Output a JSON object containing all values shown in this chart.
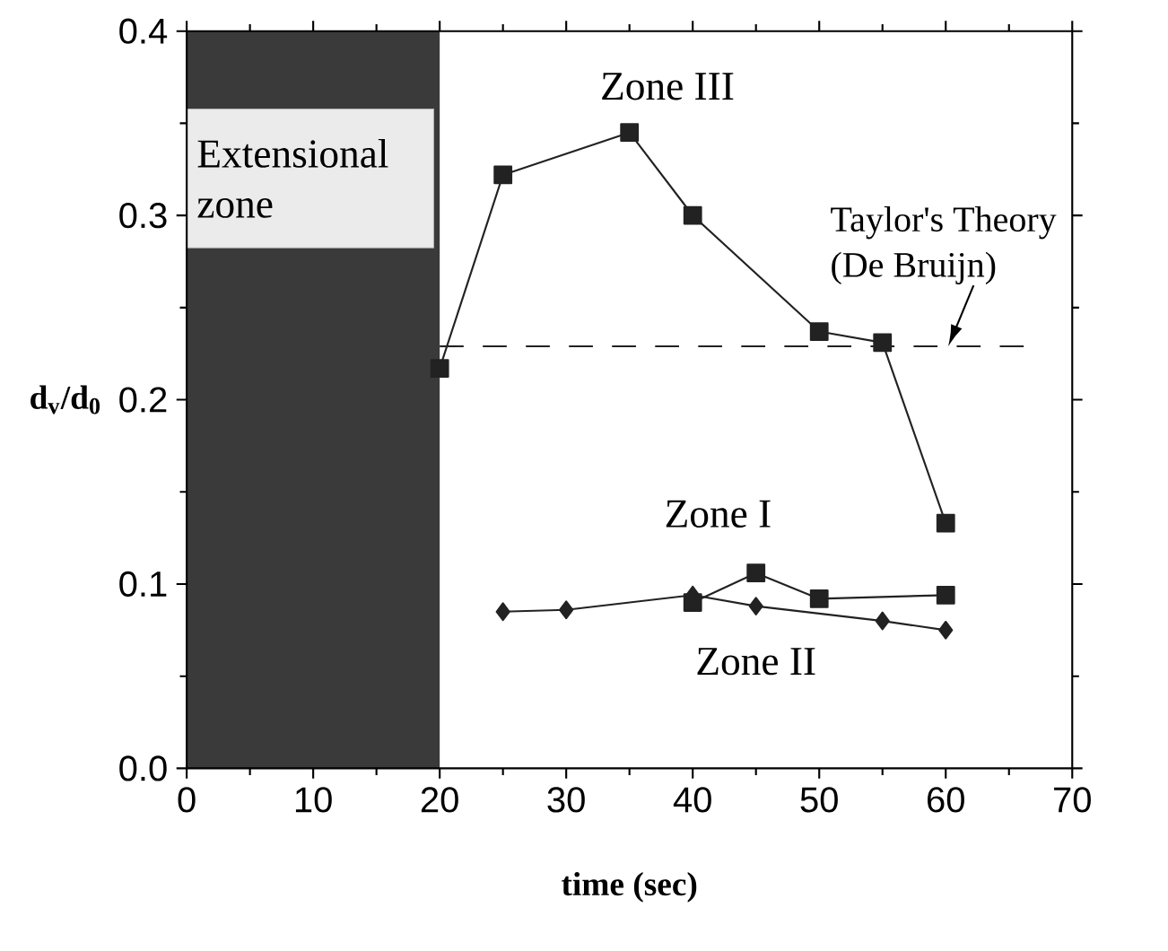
{
  "chart_data": {
    "type": "line",
    "xlabel": "time (sec)",
    "ylabel": "d$_{v}$/d$_{0}$",
    "xlim": [
      0,
      70
    ],
    "xticks": [
      0,
      10,
      20,
      30,
      40,
      50,
      60,
      70
    ],
    "ylim": [
      0,
      0.4
    ],
    "yticks": [
      {
        "value": 0,
        "label": "0.0"
      },
      0.1,
      0.2,
      0.3,
      0.4
    ],
    "series": [
      {
        "name": "Zone III",
        "color": "#222222",
        "marker": "square",
        "x": [
          20,
          25,
          35,
          40,
          50,
          55,
          60
        ],
        "values": [
          0.217,
          0.322,
          0.345,
          0.3,
          0.237,
          0.231,
          0.133
        ]
      },
      {
        "name": "Zone I",
        "color": "#222222",
        "marker": "square",
        "x": [
          40,
          45,
          50,
          60
        ],
        "values": [
          0.09,
          0.106,
          0.092,
          0.094
        ]
      },
      {
        "name": "Zone II",
        "color": "#222222",
        "marker": "diamond",
        "x": [
          25,
          30,
          40,
          45,
          55,
          60
        ],
        "values": [
          0.085,
          0.086,
          0.094,
          0.088,
          0.08,
          0.075
        ]
      }
    ],
    "ref_lines": [
      {
        "axis": "y",
        "value": 0.229,
        "label": "Taylor's Theory (De Bruijn)",
        "color": "#222222",
        "line_style": "dashed"
      }
    ],
    "bands": [
      {
        "axis": "x",
        "from": 0,
        "to": 20,
        "label": "Extensional zone",
        "color": "#3a3a3a"
      }
    ]
  }
}
